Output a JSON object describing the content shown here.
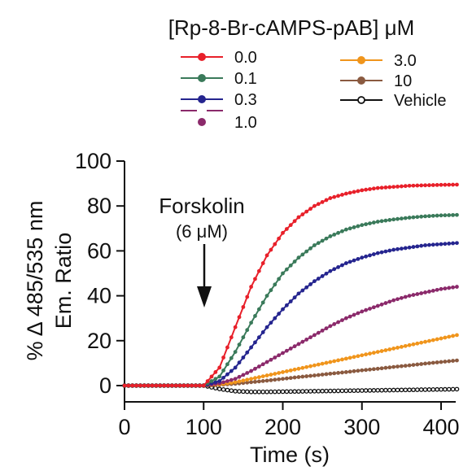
{
  "chart_data": {
    "type": "line",
    "title": "[Rp-8-Br-cAMPS-pAB] μM",
    "xlabel": "Time (s)",
    "ylabel_line1": "% Δ 485/535 nm",
    "ylabel_line2": "Em. Ratio",
    "xlim": [
      0,
      420
    ],
    "ylim": [
      -5,
      100
    ],
    "xticks": [
      0,
      100,
      200,
      300,
      400
    ],
    "yticks": [
      0,
      20,
      40,
      60,
      80,
      100
    ],
    "annotation": {
      "label_line1": "Forskolin",
      "label_line2": "(6 μM)",
      "x": 100
    },
    "legend_position": "top",
    "series": [
      {
        "name": "0.0",
        "color": "#e8202a",
        "marker": "filled",
        "x": [
          0,
          100,
          120,
          140,
          160,
          180,
          200,
          220,
          240,
          260,
          280,
          300,
          320,
          340,
          360,
          380,
          400,
          420
        ],
        "values": [
          0,
          0,
          8,
          26,
          44,
          58,
          68,
          75,
          80,
          83.5,
          85.5,
          87,
          88,
          88.5,
          89,
          89.2,
          89.4,
          89.5
        ]
      },
      {
        "name": "0.1",
        "color": "#3a7a5a",
        "marker": "filled",
        "x": [
          0,
          100,
          120,
          140,
          160,
          180,
          200,
          220,
          240,
          260,
          280,
          300,
          320,
          340,
          360,
          380,
          400,
          420
        ],
        "values": [
          0,
          0,
          4,
          15,
          28,
          40,
          50,
          57,
          62.5,
          66.5,
          69.5,
          71.5,
          73,
          74,
          74.8,
          75.4,
          75.8,
          76
        ]
      },
      {
        "name": "0.3",
        "color": "#25258f",
        "marker": "filled",
        "x": [
          0,
          100,
          120,
          140,
          160,
          180,
          200,
          220,
          240,
          260,
          280,
          300,
          320,
          340,
          360,
          380,
          400,
          420
        ],
        "values": [
          0,
          0,
          2,
          8,
          17,
          26,
          34,
          41,
          46.5,
          51,
          54.5,
          57,
          59,
          60.5,
          61.5,
          62.5,
          63,
          63.5
        ]
      },
      {
        "name": "1.0",
        "color": "#8b2a6b",
        "marker": "filled",
        "x": [
          0,
          100,
          120,
          140,
          160,
          180,
          200,
          220,
          240,
          260,
          280,
          300,
          320,
          340,
          360,
          380,
          400,
          420
        ],
        "values": [
          0,
          0,
          1,
          3,
          6.5,
          10.5,
          14.5,
          18.5,
          22.5,
          26.5,
          30,
          33,
          35.5,
          38,
          40,
          41.5,
          43,
          44
        ]
      },
      {
        "name": "3.0",
        "color": "#f0951c",
        "marker": "filled",
        "x": [
          0,
          100,
          120,
          140,
          160,
          180,
          200,
          220,
          240,
          260,
          280,
          300,
          320,
          340,
          360,
          380,
          400,
          420
        ],
        "values": [
          0,
          0,
          0.5,
          1.5,
          3,
          4.5,
          6,
          7.5,
          9,
          10.5,
          12,
          13.5,
          15,
          16.5,
          18,
          19.5,
          21,
          22.5
        ]
      },
      {
        "name": "10",
        "color": "#8a5a40",
        "marker": "filled",
        "x": [
          0,
          100,
          120,
          140,
          160,
          180,
          200,
          220,
          240,
          260,
          280,
          300,
          320,
          340,
          360,
          380,
          400,
          420
        ],
        "values": [
          0,
          0,
          0.3,
          0.8,
          1.5,
          2.2,
          3,
          3.8,
          4.5,
          5.3,
          6,
          6.8,
          7.5,
          8.3,
          9,
          9.8,
          10.5,
          11.2
        ]
      },
      {
        "name": "Vehicle",
        "color": "#111111",
        "marker": "open",
        "x": [
          0,
          100,
          120,
          140,
          160,
          180,
          200,
          220,
          240,
          260,
          280,
          300,
          320,
          340,
          360,
          380,
          400,
          420
        ],
        "values": [
          0,
          0,
          -1.5,
          -2.5,
          -2.8,
          -2.8,
          -2.7,
          -2.6,
          -2.5,
          -2.4,
          -2.3,
          -2.2,
          -2.1,
          -2,
          -1.9,
          -1.8,
          -1.7,
          -1.6
        ]
      }
    ]
  }
}
